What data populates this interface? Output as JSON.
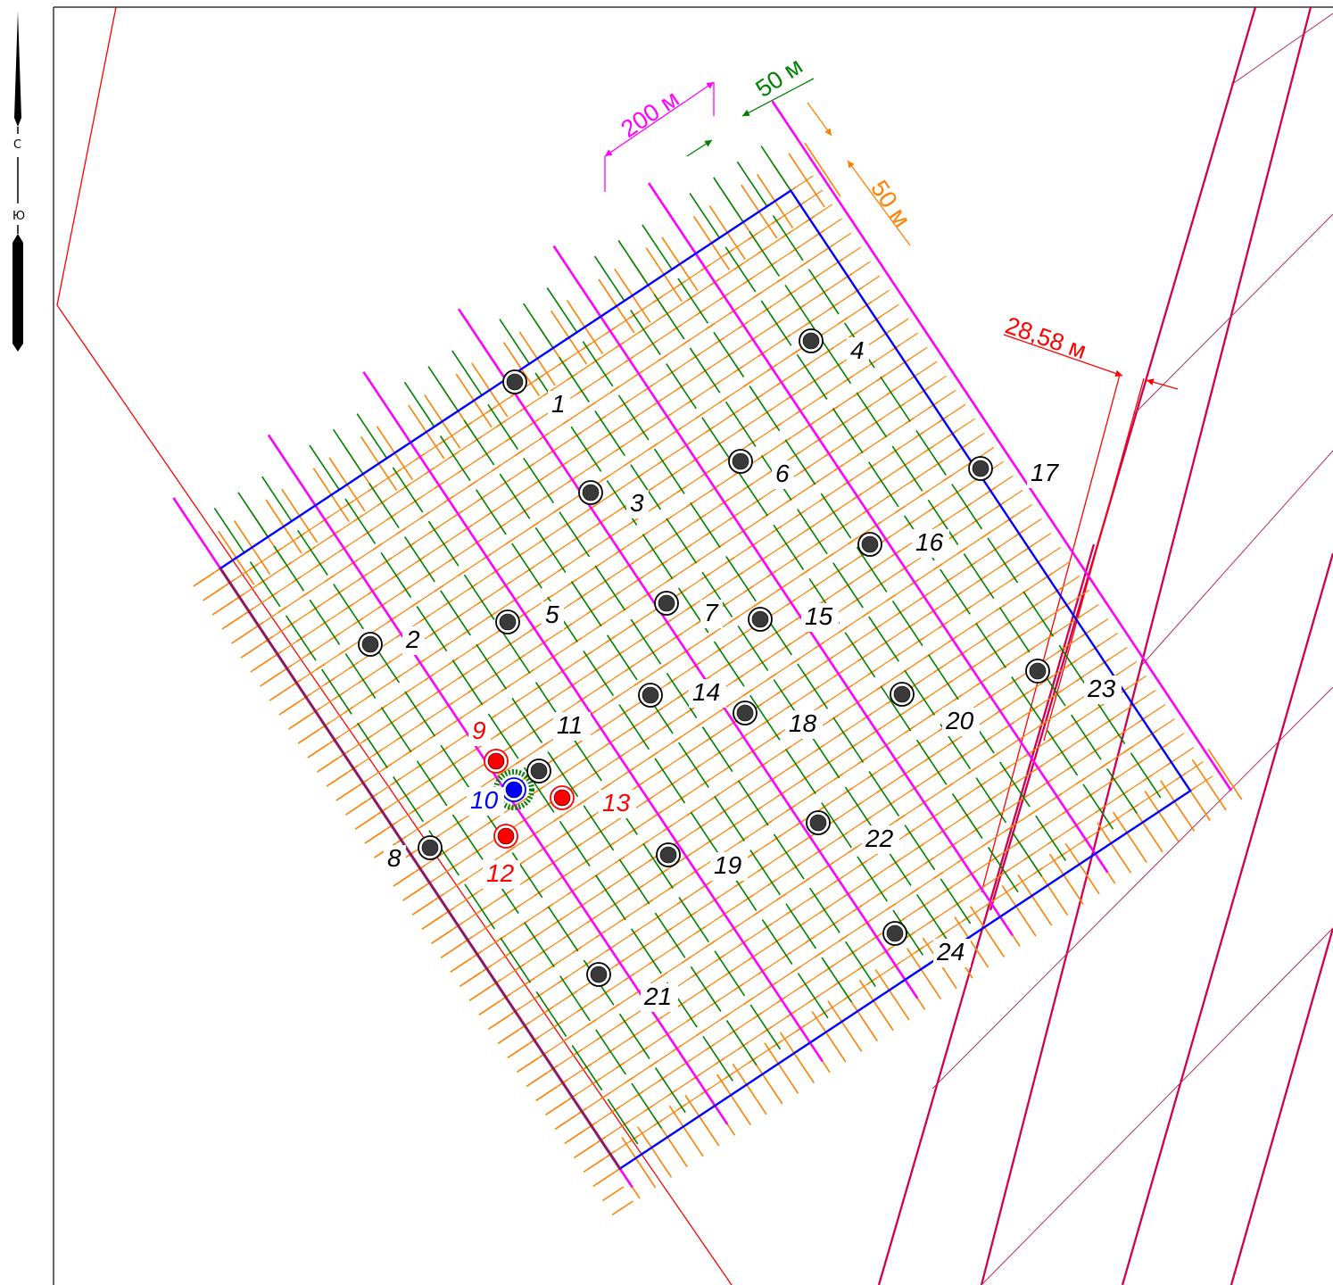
{
  "colors": {
    "boundary": "#ff0000",
    "grid_orange": "#ff8000",
    "grid_green": "#008000",
    "profile_magenta": "#ff00ff",
    "area_blue": "#0000ff",
    "road": "#d0004f",
    "well_label": "#000000",
    "well_red": "#ff0000",
    "well_blue": "#0000ff"
  },
  "compass": {
    "north": "С",
    "south": "Ю"
  },
  "dimensions": {
    "profile_spacing": "200 м",
    "green_spacing": "50 м",
    "orange_spacing": "50 м",
    "road_offset": "28,58 м"
  },
  "wells": [
    {
      "label": "1",
      "kind": "existing",
      "icon": "well-icon"
    },
    {
      "label": "2",
      "kind": "existing",
      "icon": "well-icon"
    },
    {
      "label": "3",
      "kind": "existing",
      "icon": "well-icon"
    },
    {
      "label": "4",
      "kind": "existing",
      "icon": "well-icon"
    },
    {
      "label": "5",
      "kind": "existing",
      "icon": "well-icon"
    },
    {
      "label": "6",
      "kind": "existing",
      "icon": "well-icon"
    },
    {
      "label": "7",
      "kind": "existing",
      "icon": "well-icon"
    },
    {
      "label": "8",
      "kind": "existing",
      "icon": "well-icon"
    },
    {
      "label": "9",
      "kind": "red",
      "icon": "well-icon"
    },
    {
      "label": "10",
      "kind": "blue",
      "icon": "well-icon"
    },
    {
      "label": "11",
      "kind": "existing",
      "icon": "well-icon"
    },
    {
      "label": "12",
      "kind": "red",
      "icon": "well-icon"
    },
    {
      "label": "13",
      "kind": "red",
      "icon": "well-icon"
    },
    {
      "label": "14",
      "kind": "existing",
      "icon": "well-icon"
    },
    {
      "label": "15",
      "kind": "existing",
      "icon": "well-icon"
    },
    {
      "label": "16",
      "kind": "existing",
      "icon": "well-icon"
    },
    {
      "label": "17",
      "kind": "existing",
      "icon": "well-icon"
    },
    {
      "label": "18",
      "kind": "existing",
      "icon": "well-icon"
    },
    {
      "label": "19",
      "kind": "existing",
      "icon": "well-icon"
    },
    {
      "label": "20",
      "kind": "existing",
      "icon": "well-icon"
    },
    {
      "label": "21",
      "kind": "existing",
      "icon": "well-icon"
    },
    {
      "label": "22",
      "kind": "existing",
      "icon": "well-icon"
    },
    {
      "label": "23",
      "kind": "existing",
      "icon": "well-icon"
    },
    {
      "label": "24",
      "kind": "existing",
      "icon": "well-icon"
    }
  ]
}
